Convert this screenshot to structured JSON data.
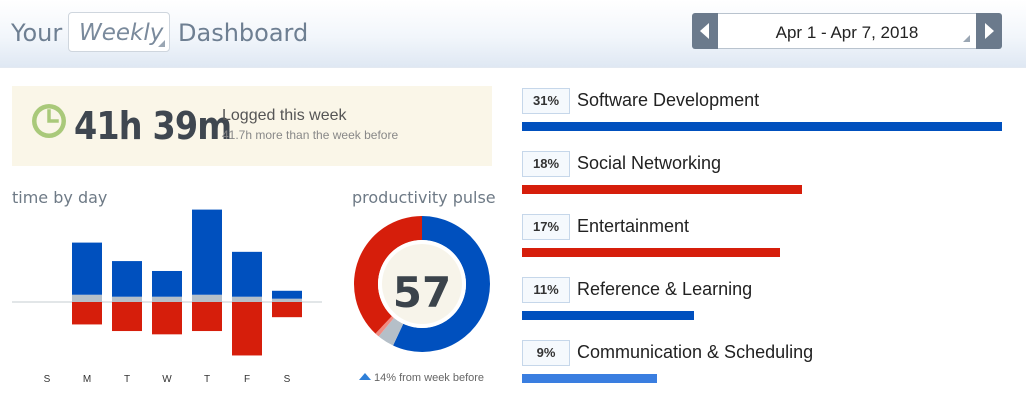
{
  "header": {
    "prefix": "Your",
    "period": "Weekly",
    "suffix": "Dashboard",
    "date_range": "Apr 1 - Apr 7, 2018"
  },
  "summary": {
    "total": "41h 39m",
    "title": "Logged this week",
    "subtitle": "41.7h more than the week before"
  },
  "time_by_day": {
    "title": "time by day"
  },
  "chart_data": [
    {
      "type": "bar",
      "title": "time by day",
      "categories": [
        "S",
        "M",
        "T",
        "W",
        "T",
        "F",
        "S"
      ],
      "series": [
        {
          "values": [
            0,
            7.9,
            5.4,
            3.9,
            12.9,
            6.8,
            1.2
          ]
        },
        {
          "values": [
            0,
            1.1,
            0.8,
            0.8,
            1.1,
            0.8,
            0.5
          ]
        },
        {
          "values": [
            0,
            -3.4,
            -4.4,
            -4.9,
            -4.4,
            -8.1,
            -2.3
          ]
        }
      ],
      "colors": [
        "#0050be",
        "#b5bfc8",
        "#d61e0b"
      ]
    },
    {
      "type": "pie",
      "title": "productivity pulse",
      "center_value": "57",
      "slices": [
        {
          "value": 57,
          "color": "#0050be"
        },
        {
          "value": 4,
          "color": "#b5bfc8"
        },
        {
          "value": 1,
          "color": "#f08c82"
        },
        {
          "value": 38,
          "color": "#d61e0b"
        }
      ]
    }
  ],
  "pulse": {
    "title": "productivity pulse",
    "score": "57",
    "note": "14% from week before"
  },
  "categories": [
    {
      "pct": "31%",
      "name": "Software Development",
      "fraction": 1.0,
      "color": "#0050be"
    },
    {
      "pct": "18%",
      "name": "Social Networking",
      "fraction": 0.583,
      "color": "#d61e0b"
    },
    {
      "pct": "17%",
      "name": "Entertainment",
      "fraction": 0.538,
      "color": "#d61e0b"
    },
    {
      "pct": "11%",
      "name": "Reference & Learning",
      "fraction": 0.358,
      "color": "#0050be"
    },
    {
      "pct": "9%",
      "name": "Communication & Scheduling",
      "fraction": 0.281,
      "color": "#3a7ee0"
    }
  ]
}
